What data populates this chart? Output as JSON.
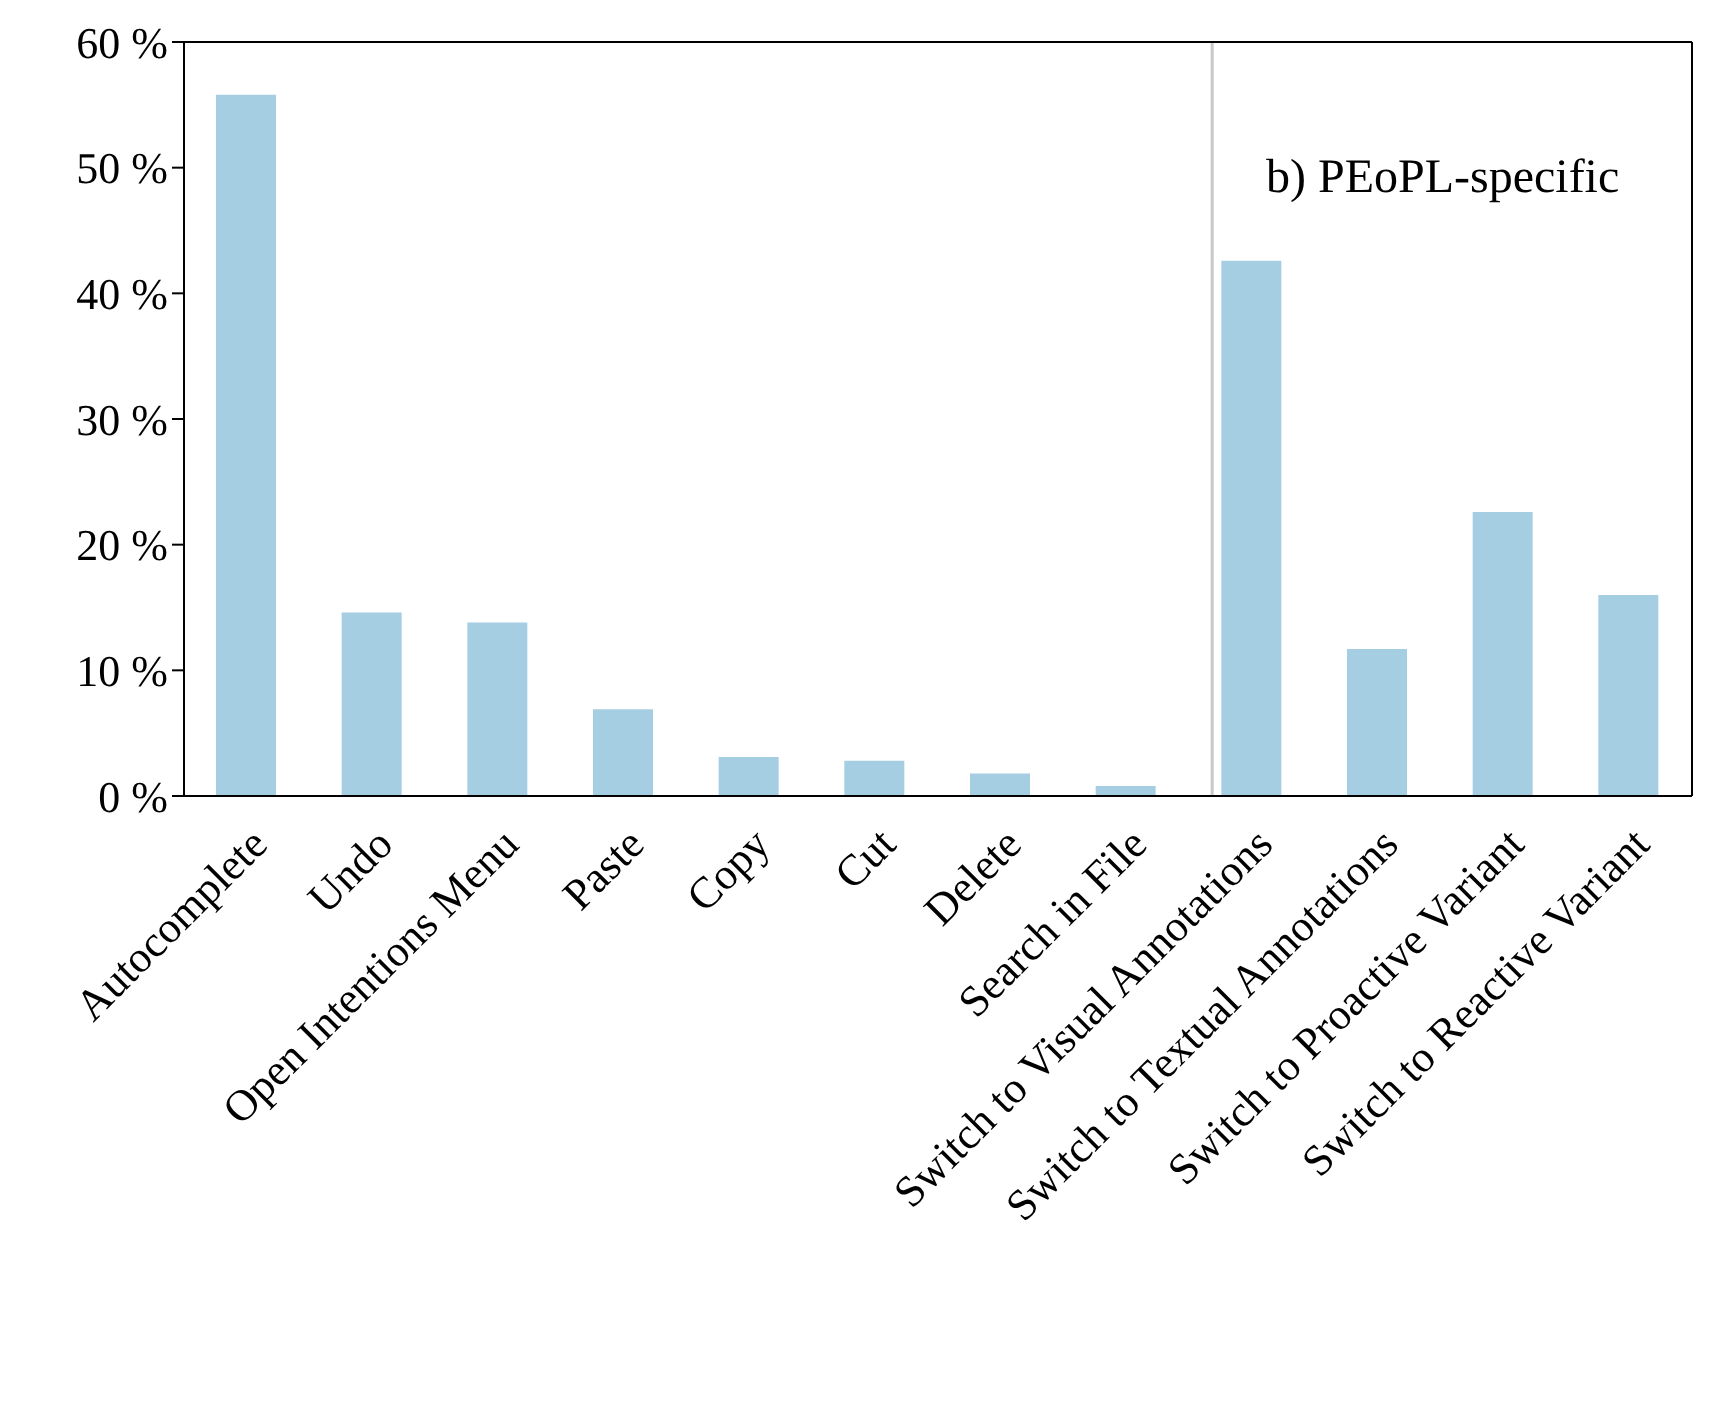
{
  "chart_data": {
    "type": "bar",
    "categories": [
      "Autocomplete",
      "Undo",
      "Open Intentions Menu",
      "Paste",
      "Copy",
      "Cut",
      "Delete",
      "Search in File",
      "Switch to Visual Annotations",
      "Switch to Textual Annotations",
      "Switch to Proactive Variant",
      "Switch to Reactive Variant"
    ],
    "values": [
      55.8,
      14.6,
      13.8,
      6.9,
      3.1,
      2.8,
      1.8,
      0.8,
      42.6,
      11.7,
      22.6,
      16.0
    ],
    "color": "#a6cee3",
    "ylim": [
      0,
      60
    ],
    "yticks": [
      {
        "value": 0,
        "label": "0 %"
      },
      {
        "value": 10,
        "label": "10 %"
      },
      {
        "value": 20,
        "label": "20 %"
      },
      {
        "value": 30,
        "label": "30 %"
      },
      {
        "value": 40,
        "label": "40 %"
      },
      {
        "value": 50,
        "label": "50 %"
      },
      {
        "value": 60,
        "label": "60 %"
      }
    ],
    "annotations": [
      "b) PEoPL-specific"
    ]
  }
}
